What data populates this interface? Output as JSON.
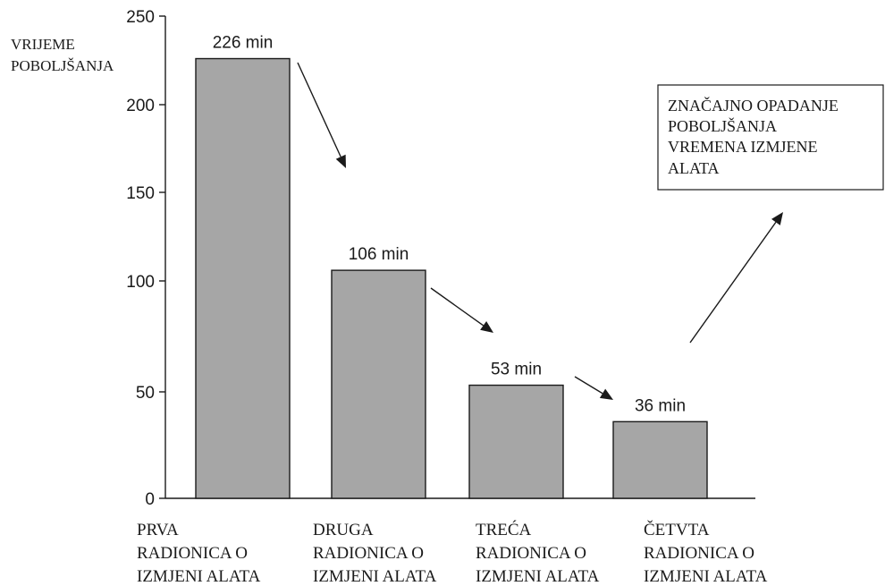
{
  "chart_data": {
    "type": "bar",
    "title": "",
    "xlabel": "",
    "ylabel": [
      "VRIJEME",
      "POBOLJŠANJA"
    ],
    "categories": [
      [
        "PRVA",
        "RADIONICA O",
        "IZMJENI ALATA"
      ],
      [
        "DRUGA",
        "RADIONICA O",
        "IZMJENI ALATA"
      ],
      [
        "TREĆA",
        "RADIONICA O",
        "IZMJENI ALATA"
      ],
      [
        "ČETVTA",
        "RADIONICA O",
        "IZMJENI ALATA"
      ]
    ],
    "values": [
      226,
      106,
      53,
      36
    ],
    "data_labels": [
      "226 min",
      "106 min",
      "53 min",
      "36 min"
    ],
    "yticks": [
      "0",
      "50",
      "100",
      "150",
      "200",
      "250"
    ],
    "ylim": [
      0,
      250
    ],
    "grid": false,
    "legend": "none",
    "annotation": [
      "ZNAČAJNO OPADANJE",
      "POBOLJŠANJA",
      "VREMENA IZMJENE",
      "ALATA"
    ],
    "colors": {
      "bar": "#a6a6a6",
      "edge": "#1a1a1a"
    }
  }
}
